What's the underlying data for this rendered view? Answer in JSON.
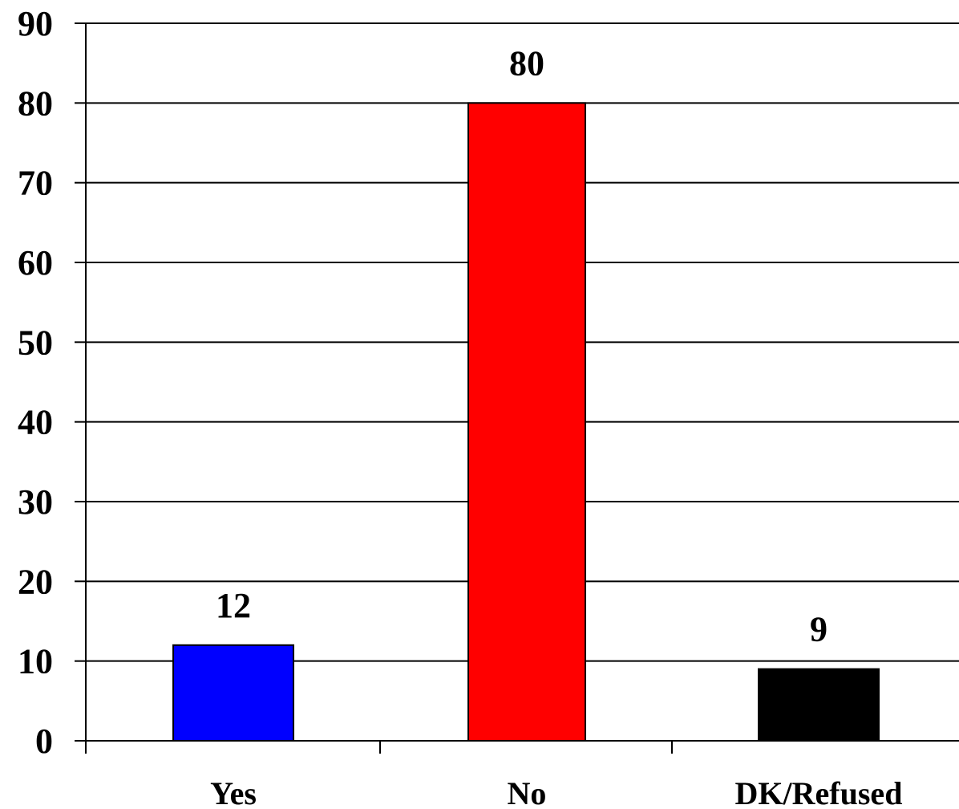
{
  "chart_data": {
    "type": "bar",
    "title": "",
    "xlabel": "",
    "ylabel": "",
    "categories": [
      "Yes",
      "No",
      "DK/Refused"
    ],
    "values": [
      12,
      80,
      9
    ],
    "data_labels": [
      "12",
      "80",
      "9"
    ],
    "colors": [
      "#0000ff",
      "#ff0000",
      "#000000"
    ],
    "ylim": [
      0,
      90
    ],
    "yticks": [
      0,
      10,
      20,
      30,
      40,
      50,
      60,
      70,
      80,
      90
    ],
    "ytick_labels": [
      "0",
      "10",
      "20",
      "30",
      "40",
      "50",
      "60",
      "70",
      "80",
      "90"
    ],
    "grid": true,
    "legend": "none"
  }
}
